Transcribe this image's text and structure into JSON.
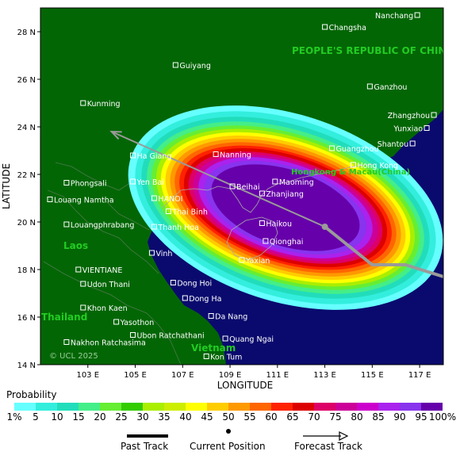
{
  "map": {
    "country_label": "PEOPLE'S REPUBLIC OF CHINA",
    "region_labels": [
      "Laos",
      "Thailand",
      "Vietnam",
      "Hongkong & Macau(China)"
    ],
    "copyright": "© UCL 2025",
    "x_axis_title": "LONGITUDE",
    "y_axis_title": "LATITUDE",
    "lon_ticks": [
      "103 E",
      "105 E",
      "107 E",
      "109 E",
      "111 E",
      "113 E",
      "115 E",
      "117 E"
    ],
    "lat_ticks": [
      "28 N",
      "26 N",
      "24 N",
      "22 N",
      "20 N",
      "18 N",
      "16 N",
      "14 N"
    ],
    "lon_range": [
      101,
      118
    ],
    "lat_range": [
      14,
      29
    ],
    "colors": {
      "ocean": "#0a0a6e",
      "land": "#036605",
      "track": "#9a9a9a"
    },
    "cities": [
      {
        "name": "Nanchang",
        "lon": 116.9,
        "lat": 28.7
      },
      {
        "name": "Changsha",
        "lon": 113.0,
        "lat": 28.2
      },
      {
        "name": "Guiyang",
        "lon": 106.7,
        "lat": 26.6
      },
      {
        "name": "Ganzhou",
        "lon": 114.9,
        "lat": 25.7
      },
      {
        "name": "Kunming",
        "lon": 102.8,
        "lat": 25.0
      },
      {
        "name": "Zhangzhou",
        "lon": 117.6,
        "lat": 24.5
      },
      {
        "name": "Yunxiao",
        "lon": 117.3,
        "lat": 23.95
      },
      {
        "name": "Guangzhou",
        "lon": 113.3,
        "lat": 23.1
      },
      {
        "name": "Shantou",
        "lon": 116.7,
        "lat": 23.3
      },
      {
        "name": "Nanning",
        "lon": 108.4,
        "lat": 22.85
      },
      {
        "name": "Ha Giang",
        "lon": 104.9,
        "lat": 22.8
      },
      {
        "name": "Phongsali",
        "lon": 102.1,
        "lat": 21.65
      },
      {
        "name": "Yen Bai",
        "lon": 104.9,
        "lat": 21.7
      },
      {
        "name": "Beihai",
        "lon": 109.1,
        "lat": 21.5
      },
      {
        "name": "Maoming",
        "lon": 110.9,
        "lat": 21.7
      },
      {
        "name": "Hong Kong",
        "lon": 114.2,
        "lat": 22.4
      },
      {
        "name": "HANOI",
        "lon": 105.8,
        "lat": 21.0
      },
      {
        "name": "Zhanjiang",
        "lon": 110.35,
        "lat": 21.2
      },
      {
        "name": "Louang Namtha",
        "lon": 101.4,
        "lat": 20.95
      },
      {
        "name": "Thai Binh",
        "lon": 106.4,
        "lat": 20.45
      },
      {
        "name": "Haikou",
        "lon": 110.35,
        "lat": 19.95
      },
      {
        "name": "Louangphrabang",
        "lon": 102.1,
        "lat": 19.9
      },
      {
        "name": "Thanh Hoa",
        "lon": 105.8,
        "lat": 19.8
      },
      {
        "name": "Qionghai",
        "lon": 110.5,
        "lat": 19.2
      },
      {
        "name": "Vinh",
        "lon": 105.7,
        "lat": 18.7
      },
      {
        "name": "Yaxian",
        "lon": 109.5,
        "lat": 18.4
      },
      {
        "name": "VIENTIANE",
        "lon": 102.6,
        "lat": 18.0
      },
      {
        "name": "Udon Thani",
        "lon": 102.8,
        "lat": 17.4
      },
      {
        "name": "Dong Hoi",
        "lon": 106.6,
        "lat": 17.45
      },
      {
        "name": "Dong Ha",
        "lon": 107.1,
        "lat": 16.8
      },
      {
        "name": "Khon Kaen",
        "lon": 102.8,
        "lat": 16.4
      },
      {
        "name": "Da Nang",
        "lon": 108.2,
        "lat": 16.05
      },
      {
        "name": "Yasothon",
        "lon": 104.2,
        "lat": 15.8
      },
      {
        "name": "Ubon Ratchathani",
        "lon": 104.9,
        "lat": 15.25
      },
      {
        "name": "Nakhon Ratchasima",
        "lon": 102.1,
        "lat": 14.95
      },
      {
        "name": "Quang Ngai",
        "lon": 108.8,
        "lat": 15.1
      },
      {
        "name": "Kon Tum",
        "lon": 108.0,
        "lat": 14.35
      }
    ],
    "past_track": [
      {
        "lon": 118.0,
        "lat": 17.7
      },
      {
        "lon": 116.4,
        "lat": 18.2
      },
      {
        "lon": 115.0,
        "lat": 18.2
      },
      {
        "lon": 113.0,
        "lat": 19.8
      }
    ],
    "current_position": {
      "lon": 113.0,
      "lat": 19.8
    },
    "forecast_track": [
      {
        "lon": 113.0,
        "lat": 19.8
      },
      {
        "lon": 104.0,
        "lat": 23.8
      }
    ]
  },
  "legend": {
    "title": "Probability",
    "tick_labels": [
      "1%",
      "5",
      "10",
      "15",
      "20",
      "25",
      "30",
      "35",
      "40",
      "45",
      "50",
      "55",
      "60",
      "65",
      "70",
      "75",
      "80",
      "85",
      "90",
      "95",
      "100%"
    ],
    "colors": [
      "#66ffff",
      "#33eedd",
      "#22ddbb",
      "#44ee88",
      "#66ee33",
      "#33cc00",
      "#aaee00",
      "#ccee00",
      "#ffff00",
      "#ffcc00",
      "#ff9900",
      "#ff6600",
      "#ff2200",
      "#dd0000",
      "#dd0066",
      "#cc0099",
      "#cc00cc",
      "#aa22ee",
      "#8833ee",
      "#6600aa"
    ],
    "key_past": "Past Track",
    "key_current": "Current Position",
    "key_forecast": "Forecast Track"
  }
}
